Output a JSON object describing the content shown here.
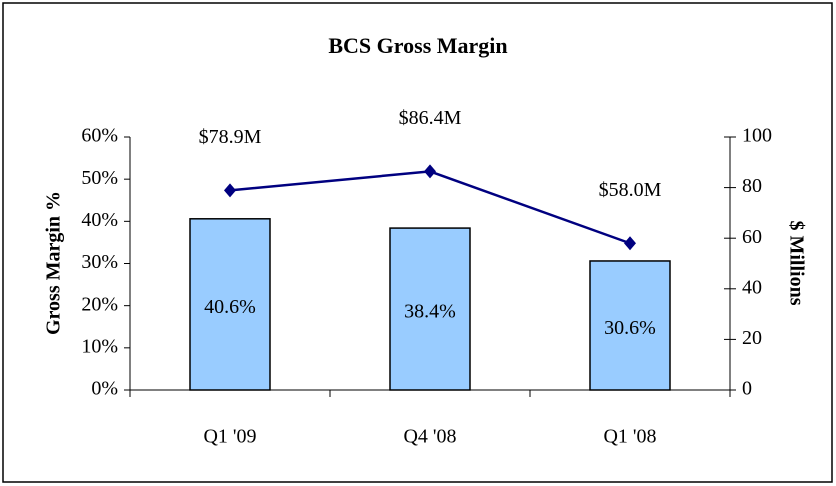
{
  "chart_data": {
    "type": "bar",
    "title": "BCS Gross Margin",
    "categories": [
      "Q1 '09",
      "Q4 '08",
      "Q1 '08"
    ],
    "series": [
      {
        "name": "Gross Margin %",
        "type": "bar",
        "color": "#99ccff",
        "values": [
          40.6,
          38.4,
          30.6
        ],
        "value_labels": [
          "40.6%",
          "38.4%",
          "30.6%"
        ]
      },
      {
        "name": "$ Millions",
        "type": "line",
        "axis": "y2",
        "color": "#000080",
        "values": [
          78.9,
          86.4,
          58.0
        ],
        "value_labels": [
          "$78.9M",
          "$86.4M",
          "$58.0M"
        ]
      }
    ],
    "ylabel": "Gross Margin %",
    "y2label": "$ Millions",
    "ylim": [
      0,
      60
    ],
    "yticks": [
      {
        "value": 0,
        "label": "0%"
      },
      {
        "value": 10,
        "label": "10%"
      },
      {
        "value": 20,
        "label": "20%"
      },
      {
        "value": 30,
        "label": "30%"
      },
      {
        "value": 40,
        "label": "40%"
      },
      {
        "value": 50,
        "label": "50%"
      },
      {
        "value": 60,
        "label": "60%"
      }
    ],
    "y2lim": [
      0,
      100
    ],
    "y2ticks": [
      0,
      20,
      40,
      60,
      80,
      100
    ]
  }
}
